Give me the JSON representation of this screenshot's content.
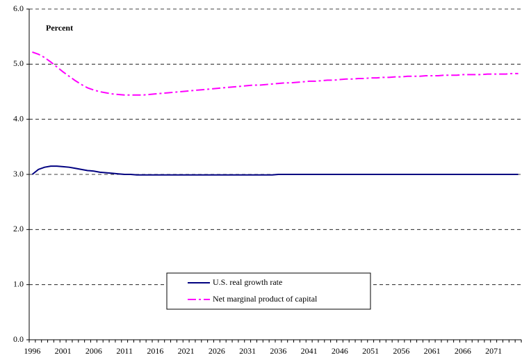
{
  "chart_data": {
    "type": "line",
    "annotation": "Percent",
    "categories": [
      "1996",
      null,
      null,
      null,
      null,
      "2001",
      null,
      null,
      null,
      null,
      "2006",
      null,
      null,
      null,
      null,
      "2011",
      null,
      null,
      null,
      null,
      "2016",
      null,
      null,
      null,
      null,
      "2021",
      null,
      null,
      null,
      null,
      "2026",
      null,
      null,
      null,
      null,
      "2031",
      null,
      null,
      null,
      null,
      "2036",
      null,
      null,
      null,
      null,
      "2041",
      null,
      null,
      null,
      null,
      "2046",
      null,
      null,
      null,
      null,
      "2051",
      null,
      null,
      null,
      null,
      "2056",
      null,
      null,
      null,
      null,
      "2061",
      null,
      null,
      null,
      null,
      "2066",
      null,
      null,
      null,
      null,
      "2071",
      null,
      null,
      null,
      null
    ],
    "series": [
      {
        "name": "U.S. real growth rate",
        "color": "#000080",
        "values": [
          3.0,
          3.09,
          3.13,
          3.15,
          3.15,
          3.14,
          3.13,
          3.11,
          3.09,
          3.07,
          3.06,
          3.04,
          3.03,
          3.02,
          3.01,
          3.0,
          3.0,
          2.99,
          2.99,
          2.99,
          2.99,
          2.99,
          2.99,
          2.99,
          2.99,
          2.99,
          2.99,
          2.99,
          2.99,
          2.99,
          2.99,
          2.99,
          2.99,
          2.99,
          2.99,
          2.99,
          2.99,
          2.99,
          2.99,
          2.99,
          3.0,
          3.0,
          3.0,
          3.0,
          3.0,
          3.0,
          3.0,
          3.0,
          3.0,
          3.0,
          3.0,
          3.0,
          3.0,
          3.0,
          3.0,
          3.0,
          3.0,
          3.0,
          3.0,
          3.0,
          3.0,
          3.0,
          3.0,
          3.0,
          3.0,
          3.0,
          3.0,
          3.0,
          3.0,
          3.0,
          3.0,
          3.0,
          3.0,
          3.0,
          3.0,
          3.0,
          3.0,
          3.0,
          3.0,
          3.0
        ]
      },
      {
        "name": "Net marginal product of capital",
        "color": "#ff00ff",
        "values": [
          5.22,
          5.18,
          5.12,
          5.04,
          4.95,
          4.86,
          4.78,
          4.7,
          4.63,
          4.57,
          4.53,
          4.5,
          4.48,
          4.46,
          4.45,
          4.44,
          4.44,
          4.44,
          4.44,
          4.45,
          4.46,
          4.47,
          4.48,
          4.49,
          4.5,
          4.51,
          4.52,
          4.53,
          4.54,
          4.55,
          4.56,
          4.57,
          4.58,
          4.59,
          4.6,
          4.61,
          4.62,
          4.62,
          4.63,
          4.64,
          4.65,
          4.66,
          4.66,
          4.67,
          4.68,
          4.69,
          4.69,
          4.7,
          4.71,
          4.71,
          4.72,
          4.73,
          4.73,
          4.74,
          4.74,
          4.75,
          4.75,
          4.76,
          4.76,
          4.77,
          4.77,
          4.78,
          4.78,
          4.78,
          4.79,
          4.79,
          4.79,
          4.8,
          4.8,
          4.8,
          4.81,
          4.81,
          4.81,
          4.81,
          4.82,
          4.82,
          4.82,
          4.82,
          4.83,
          4.83
        ]
      }
    ],
    "ylim": [
      0,
      6
    ],
    "yticks": [
      {
        "value": 0,
        "label": "0.0"
      },
      {
        "value": 1,
        "label": "1.0"
      },
      {
        "value": 2,
        "label": "2.0"
      },
      {
        "value": 3,
        "label": "3.0"
      },
      {
        "value": 4,
        "label": "4.0"
      },
      {
        "value": 5,
        "label": "5.0"
      },
      {
        "value": 6,
        "label": "6.0"
      }
    ],
    "grid": true
  }
}
